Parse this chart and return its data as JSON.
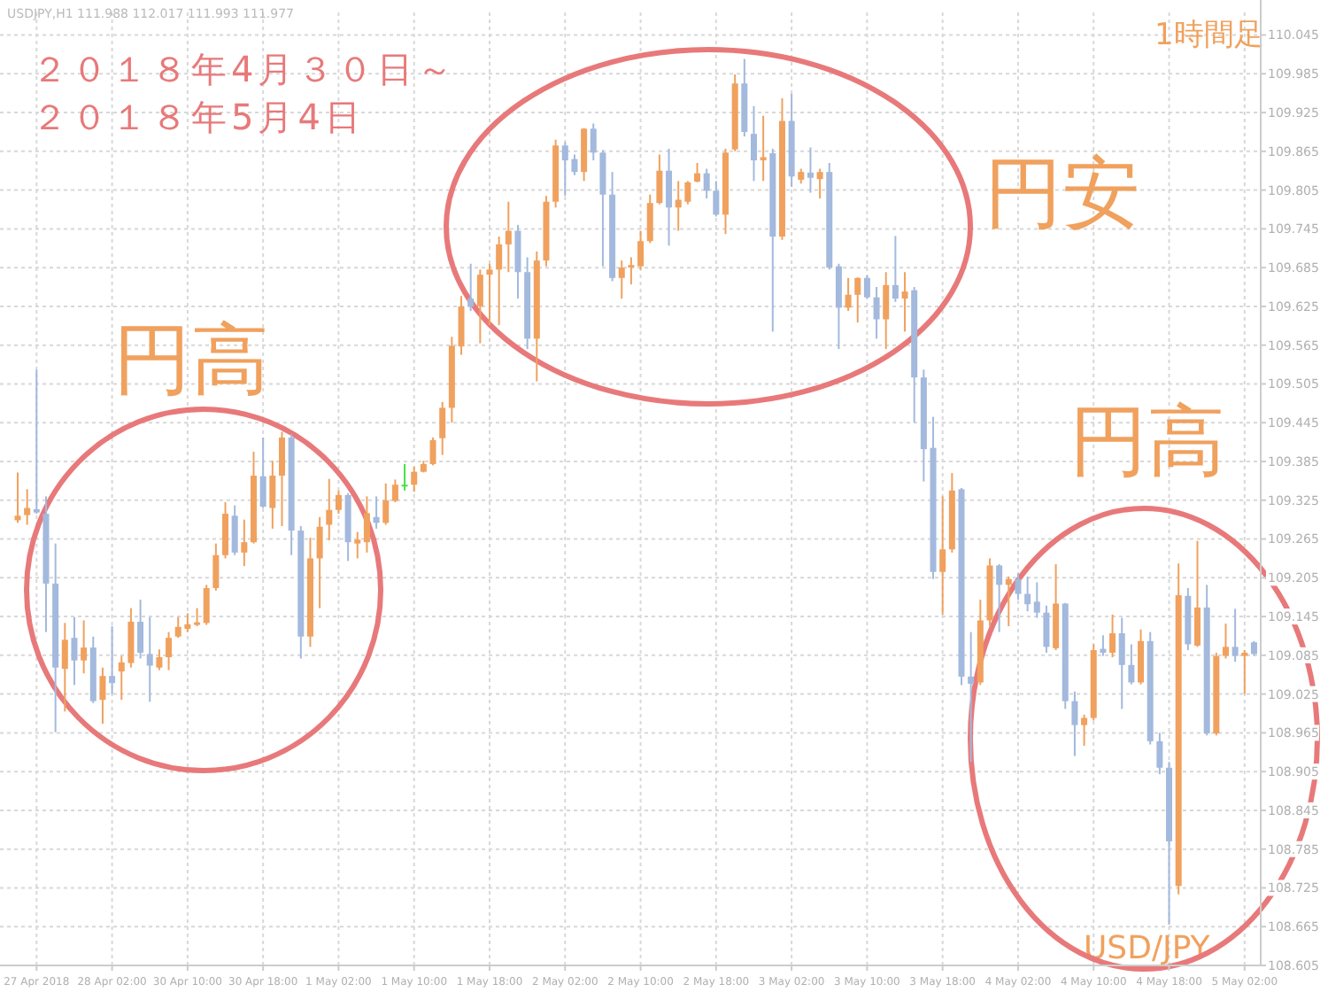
{
  "chart_data": {
    "type": "candlestick",
    "annotations": [
      "USDJPY,H1  111.988 112.017 111.993 111.977",
      "２０１８年4月３０日～",
      "２０１８年5月4日",
      "1時間足",
      "円高",
      "円安",
      "円高",
      "USD/JPY"
    ],
    "categories": [
      null,
      null,
      "27 Apr 2018",
      null,
      null,
      null,
      null,
      null,
      null,
      null,
      "28 Apr 02:00",
      null,
      null,
      null,
      null,
      null,
      null,
      null,
      "30 Apr 10:00",
      null,
      null,
      null,
      null,
      null,
      null,
      null,
      "30 Apr 18:00",
      null,
      null,
      null,
      null,
      null,
      null,
      null,
      "1 May 02:00",
      null,
      null,
      null,
      null,
      null,
      null,
      null,
      "1 May 10:00",
      null,
      null,
      null,
      null,
      null,
      null,
      null,
      "1 May 18:00",
      null,
      null,
      null,
      null,
      null,
      null,
      null,
      "2 May 02:00",
      null,
      null,
      null,
      null,
      null,
      null,
      null,
      "2 May 10:00",
      null,
      null,
      null,
      null,
      null,
      null,
      null,
      "2 May 18:00",
      null,
      null,
      null,
      null,
      null,
      null,
      null,
      "3 May 02:00",
      null,
      null,
      null,
      null,
      null,
      null,
      null,
      "3 May 10:00",
      null,
      null,
      null,
      null,
      null,
      null,
      null,
      "3 May 18:00",
      null,
      null,
      null,
      null,
      null,
      null,
      null,
      "4 May 02:00",
      null,
      null,
      null,
      null,
      null,
      null,
      null,
      "4 May 10:00",
      null,
      null,
      null,
      null,
      null,
      null,
      null,
      "4 May 18:00",
      null,
      null,
      null,
      null,
      null,
      null,
      null,
      "5 May 02:00",
      null
    ],
    "ohlc": [
      [
        109.294,
        109.368,
        109.29,
        109.301
      ],
      [
        109.302,
        109.342,
        109.287,
        109.313
      ],
      [
        109.311,
        109.527,
        109.304,
        109.306
      ],
      [
        109.304,
        109.331,
        109.121,
        109.196
      ],
      [
        109.196,
        109.258,
        108.966,
        109.066
      ],
      [
        109.064,
        109.135,
        108.998,
        109.109
      ],
      [
        109.112,
        109.144,
        109.039,
        109.077
      ],
      [
        109.077,
        109.139,
        109.057,
        109.097
      ],
      [
        109.097,
        109.114,
        109.011,
        109.014
      ],
      [
        109.016,
        109.066,
        108.979,
        109.053
      ],
      [
        109.053,
        109.13,
        109.025,
        109.042
      ],
      [
        109.06,
        109.084,
        109.016,
        109.074
      ],
      [
        109.073,
        109.158,
        109.066,
        109.137
      ],
      [
        109.137,
        109.171,
        109.08,
        109.089
      ],
      [
        109.087,
        109.144,
        109.013,
        109.069
      ],
      [
        109.066,
        109.094,
        109.062,
        109.082
      ],
      [
        109.082,
        109.121,
        109.062,
        109.112
      ],
      [
        109.114,
        109.144,
        109.112,
        109.129
      ],
      [
        109.126,
        109.15,
        109.121,
        109.133
      ],
      [
        109.132,
        109.158,
        109.13,
        109.136
      ],
      [
        109.135,
        109.194,
        109.132,
        109.189
      ],
      [
        109.189,
        109.258,
        109.185,
        109.24
      ],
      [
        109.24,
        109.322,
        109.235,
        109.304
      ],
      [
        109.301,
        109.317,
        109.24,
        109.244
      ],
      [
        109.244,
        109.295,
        109.223,
        109.26
      ],
      [
        109.26,
        109.4,
        109.258,
        109.363
      ],
      [
        109.362,
        109.422,
        109.313,
        109.315
      ],
      [
        109.313,
        109.386,
        109.281,
        109.363
      ],
      [
        109.363,
        109.431,
        109.285,
        109.422
      ],
      [
        109.422,
        109.427,
        109.24,
        109.278
      ],
      [
        109.278,
        109.285,
        109.08,
        109.114
      ],
      [
        109.114,
        109.267,
        109.098,
        109.235
      ],
      [
        109.235,
        109.299,
        109.158,
        109.284
      ],
      [
        109.287,
        109.358,
        109.263,
        109.31
      ],
      [
        109.31,
        109.34,
        109.304,
        109.333
      ],
      [
        109.333,
        109.336,
        109.231,
        109.26
      ],
      [
        109.258,
        109.276,
        109.235,
        109.264
      ],
      [
        109.26,
        109.331,
        109.244,
        109.305
      ],
      [
        109.299,
        109.331,
        109.281,
        109.29
      ],
      [
        109.29,
        109.351,
        109.287,
        109.325
      ],
      [
        109.324,
        109.357,
        109.322,
        109.349
      ],
      [
        109.349,
        109.381,
        109.34,
        109.349
      ],
      [
        109.349,
        109.377,
        109.338,
        109.369
      ],
      [
        109.369,
        109.386,
        109.368,
        109.381
      ],
      [
        109.381,
        109.422,
        109.379,
        109.418
      ],
      [
        109.421,
        109.477,
        109.395,
        109.468
      ],
      [
        109.468,
        109.578,
        109.445,
        109.564
      ],
      [
        109.563,
        109.641,
        109.55,
        109.625
      ],
      [
        109.637,
        109.691,
        109.618,
        109.625
      ],
      [
        109.625,
        109.682,
        109.568,
        109.674
      ],
      [
        109.674,
        109.691,
        109.596,
        109.682
      ],
      [
        109.682,
        109.733,
        109.596,
        109.721
      ],
      [
        109.721,
        109.787,
        109.678,
        109.742
      ],
      [
        109.742,
        109.751,
        109.637,
        109.678
      ],
      [
        109.678,
        109.701,
        109.559,
        109.575
      ],
      [
        109.575,
        109.71,
        109.509,
        109.696
      ],
      [
        109.696,
        109.796,
        109.687,
        109.787
      ],
      [
        109.787,
        109.883,
        109.778,
        109.874
      ],
      [
        109.874,
        109.879,
        109.796,
        109.851
      ],
      [
        109.853,
        109.86,
        109.828,
        109.833
      ],
      [
        109.833,
        109.901,
        109.819,
        109.9
      ],
      [
        109.9,
        109.908,
        109.851,
        109.863
      ],
      [
        109.863,
        109.867,
        109.687,
        109.798
      ],
      [
        109.798,
        109.833,
        109.664,
        109.669
      ],
      [
        109.669,
        109.696,
        109.637,
        109.685
      ],
      [
        109.685,
        109.701,
        109.659,
        109.689
      ],
      [
        109.687,
        109.742,
        109.682,
        109.726
      ],
      [
        109.726,
        109.798,
        109.723,
        109.785
      ],
      [
        109.785,
        109.86,
        109.783,
        109.835
      ],
      [
        109.835,
        109.869,
        109.719,
        109.778
      ],
      [
        109.778,
        109.819,
        109.742,
        109.79
      ],
      [
        109.787,
        109.819,
        109.783,
        109.817
      ],
      [
        109.818,
        109.847,
        109.817,
        109.831
      ],
      [
        109.831,
        109.838,
        109.792,
        109.804
      ],
      [
        109.804,
        109.819,
        109.764,
        109.767
      ],
      [
        109.767,
        109.869,
        109.737,
        109.863
      ],
      [
        109.868,
        109.984,
        109.865,
        109.97
      ],
      [
        109.97,
        110.008,
        109.888,
        109.895
      ],
      [
        109.892,
        109.935,
        109.819,
        109.851
      ],
      [
        109.851,
        109.92,
        109.819,
        109.856
      ],
      [
        109.862,
        109.869,
        109.586,
        109.733
      ],
      [
        109.733,
        109.947,
        109.728,
        109.912
      ],
      [
        109.912,
        109.954,
        109.81,
        109.826
      ],
      [
        109.821,
        109.838,
        109.815,
        109.833
      ],
      [
        109.832,
        109.871,
        109.801,
        109.824
      ],
      [
        109.822,
        109.838,
        109.792,
        109.833
      ],
      [
        109.833,
        109.847,
        109.682,
        109.685
      ],
      [
        109.687,
        109.691,
        109.559,
        109.623
      ],
      [
        109.623,
        109.669,
        109.618,
        109.643
      ],
      [
        109.643,
        109.67,
        109.6,
        109.669
      ],
      [
        109.669,
        109.673,
        109.637,
        109.639
      ],
      [
        109.639,
        109.655,
        109.575,
        109.605
      ],
      [
        109.605,
        109.678,
        109.559,
        109.658
      ],
      [
        109.658,
        109.734,
        109.632,
        109.637
      ],
      [
        109.637,
        109.678,
        109.586,
        109.648
      ],
      [
        109.65,
        109.655,
        109.445,
        109.515
      ],
      [
        109.515,
        109.527,
        109.354,
        109.404
      ],
      [
        109.406,
        109.454,
        109.203,
        109.214
      ],
      [
        109.214,
        109.331,
        109.148,
        109.249
      ],
      [
        109.249,
        109.367,
        109.244,
        109.34
      ],
      [
        109.342,
        109.344,
        109.039,
        109.052
      ],
      [
        109.052,
        109.121,
        108.92,
        109.041
      ],
      [
        109.043,
        109.171,
        109.039,
        109.139
      ],
      [
        109.139,
        109.235,
        109.13,
        109.224
      ],
      [
        109.224,
        109.226,
        109.121,
        109.194
      ],
      [
        109.194,
        109.207,
        109.13,
        109.203
      ],
      [
        109.203,
        109.212,
        109.171,
        109.18
      ],
      [
        109.18,
        109.207,
        109.153,
        109.164
      ],
      [
        109.168,
        109.198,
        109.143,
        109.151
      ],
      [
        109.151,
        109.162,
        109.089,
        109.098
      ],
      [
        109.096,
        109.226,
        109.093,
        109.165
      ],
      [
        109.165,
        109.166,
        109.002,
        109.014
      ],
      [
        109.014,
        109.029,
        108.929,
        108.977
      ],
      [
        108.977,
        108.993,
        108.945,
        108.988
      ],
      [
        108.988,
        109.102,
        108.984,
        109.093
      ],
      [
        109.095,
        109.116,
        109.084,
        109.089
      ],
      [
        109.089,
        109.148,
        109.082,
        109.119
      ],
      [
        109.119,
        109.143,
        109.002,
        109.07
      ],
      [
        109.07,
        109.102,
        109.04,
        109.043
      ],
      [
        109.043,
        109.125,
        109.04,
        109.107
      ],
      [
        109.107,
        109.121,
        108.947,
        108.952
      ],
      [
        108.952,
        108.965,
        108.901,
        108.911
      ],
      [
        108.911,
        108.92,
        108.668,
        108.797
      ],
      [
        108.728,
        109.227,
        108.715,
        109.178
      ],
      [
        109.177,
        109.189,
        109.093,
        109.102
      ],
      [
        109.1,
        109.262,
        109.098,
        109.159
      ],
      [
        109.159,
        109.194,
        108.961,
        108.964
      ],
      [
        108.964,
        109.089,
        108.961,
        109.084
      ],
      [
        109.084,
        109.134,
        109.08,
        109.098
      ],
      [
        109.098,
        109.157,
        109.075,
        109.084
      ],
      [
        109.084,
        109.093,
        109.025,
        109.089
      ],
      [
        109.105,
        109.107,
        109.084,
        109.087
      ]
    ],
    "colors": [
      "#f0a15e",
      "#f0a15e",
      "#a3b9dd",
      "#a3b9dd",
      "#a3b9dd",
      "#f0a15e",
      "#a3b9dd",
      "#f0a15e",
      "#a3b9dd",
      "#f0a15e",
      "#a3b9dd",
      "#f0a15e",
      "#f0a15e",
      "#a3b9dd",
      "#a3b9dd",
      "#f0a15e",
      "#f0a15e",
      "#f0a15e",
      "#f0a15e",
      "#f0a15e",
      "#f0a15e",
      "#f0a15e",
      "#f0a15e",
      "#a3b9dd",
      "#f0a15e",
      "#f0a15e",
      "#a3b9dd",
      "#f0a15e",
      "#f0a15e",
      "#a3b9dd",
      "#a3b9dd",
      "#f0a15e",
      "#f0a15e",
      "#f0a15e",
      "#f0a15e",
      "#a3b9dd",
      "#f0a15e",
      "#f0a15e",
      "#a3b9dd",
      "#f0a15e",
      "#f0a15e",
      "#44e044",
      "#f0a15e",
      "#f0a15e",
      "#f0a15e",
      "#f0a15e",
      "#f0a15e",
      "#f0a15e",
      "#a3b9dd",
      "#f0a15e",
      "#f0a15e",
      "#f0a15e",
      "#f0a15e",
      "#a3b9dd",
      "#a3b9dd",
      "#f0a15e",
      "#f0a15e",
      "#f0a15e",
      "#a3b9dd",
      "#a3b9dd",
      "#f0a15e",
      "#a3b9dd",
      "#a3b9dd",
      "#a3b9dd",
      "#f0a15e",
      "#f0a15e",
      "#f0a15e",
      "#f0a15e",
      "#f0a15e",
      "#a3b9dd",
      "#f0a15e",
      "#f0a15e",
      "#f0a15e",
      "#a3b9dd",
      "#a3b9dd",
      "#f0a15e",
      "#f0a15e",
      "#a3b9dd",
      "#a3b9dd",
      "#f0a15e",
      "#a3b9dd",
      "#f0a15e",
      "#a3b9dd",
      "#f0a15e",
      "#a3b9dd",
      "#f0a15e",
      "#a3b9dd",
      "#a3b9dd",
      "#f0a15e",
      "#f0a15e",
      "#a3b9dd",
      "#a3b9dd",
      "#f0a15e",
      "#a3b9dd",
      "#f0a15e",
      "#a3b9dd",
      "#a3b9dd",
      "#a3b9dd",
      "#f0a15e",
      "#f0a15e",
      "#a3b9dd",
      "#a3b9dd",
      "#f0a15e",
      "#f0a15e",
      "#a3b9dd",
      "#f0a15e",
      "#a3b9dd",
      "#a3b9dd",
      "#a3b9dd",
      "#a3b9dd",
      "#f0a15e",
      "#a3b9dd",
      "#a3b9dd",
      "#f0a15e",
      "#f0a15e",
      "#a3b9dd",
      "#f0a15e",
      "#a3b9dd",
      "#a3b9dd",
      "#f0a15e",
      "#a3b9dd",
      "#a3b9dd",
      "#a3b9dd",
      "#f0a15e",
      "#a3b9dd",
      "#f0a15e",
      "#a3b9dd",
      "#f0a15e",
      "#f0a15e",
      "#a3b9dd",
      "#f0a15e",
      "#a3b9dd"
    ],
    "ylim": [
      108.605,
      110.08
    ],
    "yticks": [
      108.605,
      108.665,
      108.725,
      108.785,
      108.845,
      108.905,
      108.965,
      109.025,
      109.085,
      109.145,
      109.205,
      109.265,
      109.325,
      109.385,
      109.445,
      109.505,
      109.565,
      109.625,
      109.685,
      109.745,
      109.805,
      109.865,
      109.925,
      109.985,
      110.045
    ],
    "grid": true
  }
}
